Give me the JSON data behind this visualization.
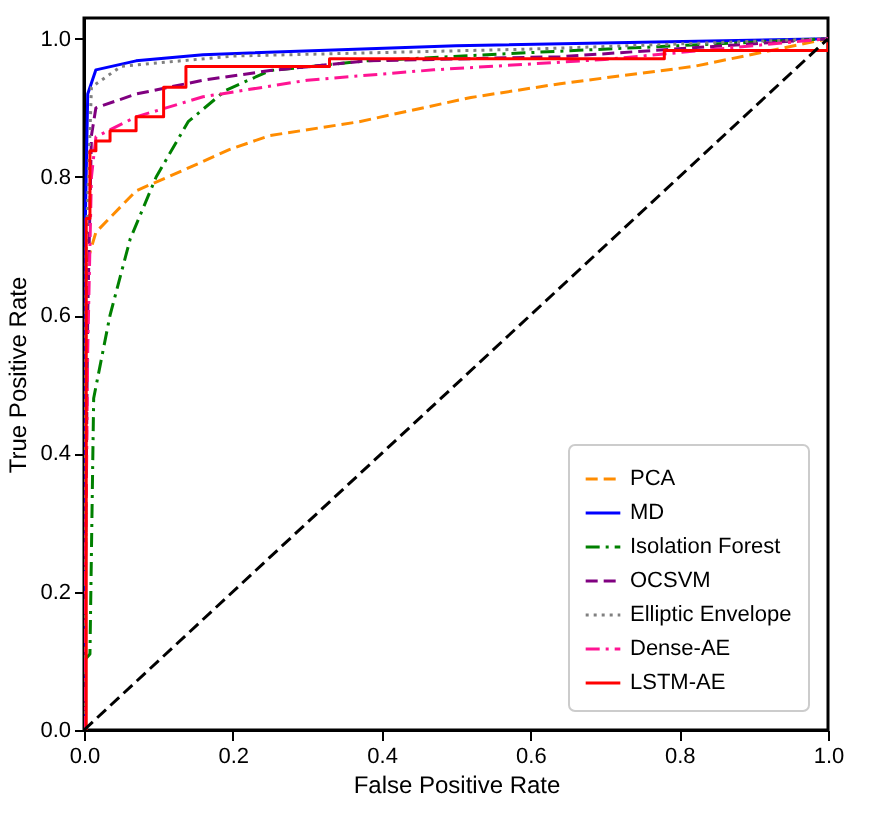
{
  "chart_data": {
    "type": "line",
    "xlabel": "False Positive Rate",
    "ylabel": "True Positive Rate",
    "xlim": [
      0,
      1
    ],
    "ylim": [
      0,
      1.03
    ],
    "xticks": [
      {
        "value": 0,
        "label": "0.0"
      },
      0.2,
      0.4,
      0.6,
      0.8,
      {
        "value": 1,
        "label": "1.0"
      }
    ],
    "yticks": [
      {
        "value": 0,
        "label": "0.0"
      },
      0.2,
      0.4,
      0.6,
      0.8,
      {
        "value": 1,
        "label": "1.0"
      }
    ],
    "grid": false,
    "legend": "bottom right",
    "marker": "none",
    "series": [
      {
        "name": "PCA",
        "color": "#ff8c00",
        "line_style": "dashed",
        "x": [
          0,
          0.002,
          0.005,
          0.016,
          0.07,
          0.134,
          0.196,
          0.25,
          0.37,
          0.52,
          0.64,
          0.82,
          1
        ],
        "values": [
          0,
          0.55,
          0.68,
          0.72,
          0.78,
          0.81,
          0.84,
          0.86,
          0.88,
          0.915,
          0.935,
          0.96,
          1
        ]
      },
      {
        "name": "MD",
        "color": "#0000ff",
        "line_style": "solid",
        "x": [
          0,
          0.002,
          0.005,
          0.016,
          0.07,
          0.16,
          0.5,
          1
        ],
        "values": [
          0,
          0.75,
          0.92,
          0.955,
          0.968,
          0.977,
          0.99,
          1
        ]
      },
      {
        "name": "Isolation Forest",
        "color": "#008000",
        "line_style": "dashdot",
        "x": [
          0,
          0.008,
          0.013,
          0.035,
          0.062,
          0.097,
          0.14,
          0.19,
          0.25,
          0.38,
          0.6,
          1
        ],
        "values": [
          0.1,
          0.11,
          0.48,
          0.6,
          0.71,
          0.8,
          0.88,
          0.925,
          0.954,
          0.968,
          0.98,
          1
        ]
      },
      {
        "name": "OCSVM",
        "color": "#800080",
        "line_style": "dashed",
        "x": [
          0,
          0.005,
          0.01,
          0.016,
          0.07,
          0.16,
          0.25,
          0.38,
          0.64,
          1
        ],
        "values": [
          0,
          0.6,
          0.86,
          0.9,
          0.92,
          0.94,
          0.954,
          0.968,
          0.974,
          1
        ]
      },
      {
        "name": "Elliptic Envelope",
        "color": "#808080",
        "line_style": "dotted",
        "x": [
          0,
          0.003,
          0.01,
          0.05,
          0.2,
          0.6,
          1
        ],
        "values": [
          0,
          0.7,
          0.93,
          0.96,
          0.975,
          0.985,
          1
        ]
      },
      {
        "name": "Dense-AE",
        "color": "#ff1493",
        "line_style": "dashdot",
        "x": [
          0,
          0.005,
          0.01,
          0.016,
          0.07,
          0.16,
          0.3,
          0.47,
          0.7,
          1
        ],
        "values": [
          0,
          0.55,
          0.8,
          0.858,
          0.887,
          0.916,
          0.94,
          0.955,
          0.97,
          1
        ]
      },
      {
        "name": "LSTM-AE",
        "color": "#ff0000",
        "type": "step",
        "line_style": "solid",
        "x": [
          0,
          0.003,
          0.008,
          0.016,
          0.035,
          0.07,
          0.107,
          0.137,
          0.33,
          0.78,
          1
        ],
        "values": [
          0,
          0.74,
          0.838,
          0.852,
          0.867,
          0.887,
          0.93,
          0.96,
          0.971,
          0.983,
          0.995
        ]
      },
      {
        "color": "#000000",
        "line_style": "dashed",
        "x": [
          0,
          1
        ],
        "values": [
          0,
          1
        ]
      }
    ]
  }
}
